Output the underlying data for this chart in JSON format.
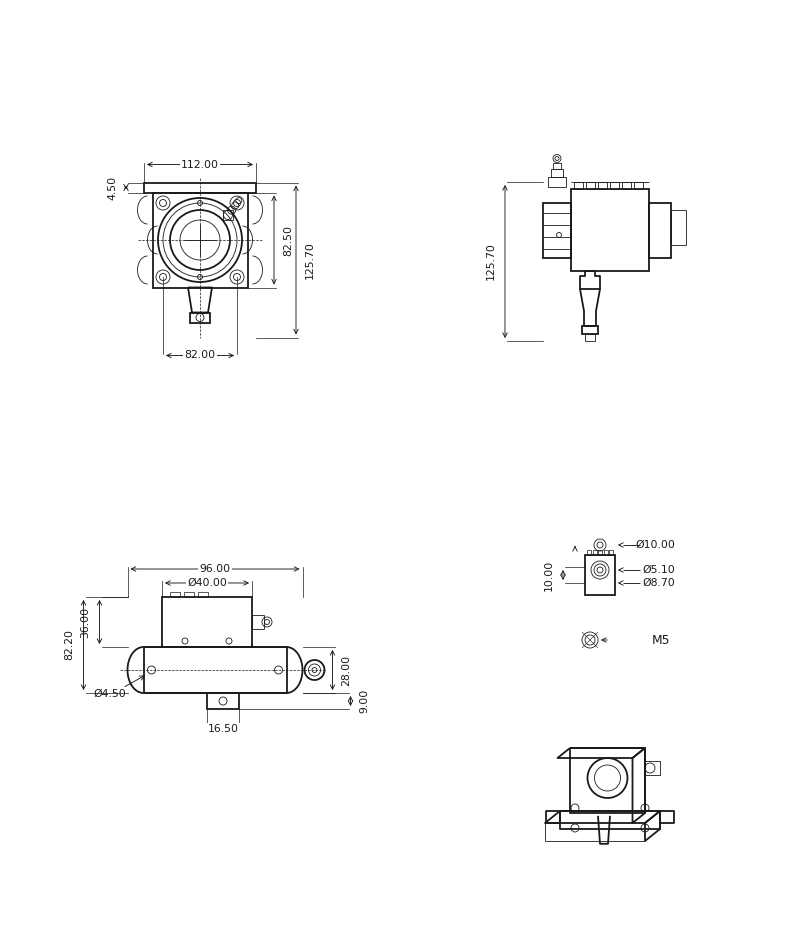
{
  "bg_color": "#ffffff",
  "line_color": "#1a1a1a",
  "lw_main": 1.3,
  "lw_thin": 0.6,
  "lw_dim": 0.65,
  "font_size_dim": 7.8,
  "dimensions": {
    "front_width": "112.00",
    "front_tab": "4.50",
    "front_h1": "82.50",
    "front_h2": "125.70",
    "front_bolt_span": "82.00",
    "bottom_length": "96.00",
    "bottom_drum_dia": "Ø40.00",
    "bottom_height_upper": "36.00",
    "bottom_height_lower": "28.00",
    "bottom_total_h": "82.20",
    "bottom_hole_dia": "Ø4.50",
    "bottom_foot_w": "16.50",
    "bottom_foot_offset": "9.00",
    "detail_d1": "Ø10.00",
    "detail_d2": "Ø5.10",
    "detail_d3": "Ø8.70",
    "detail_depth": "10.00",
    "detail_m5": "M5"
  }
}
